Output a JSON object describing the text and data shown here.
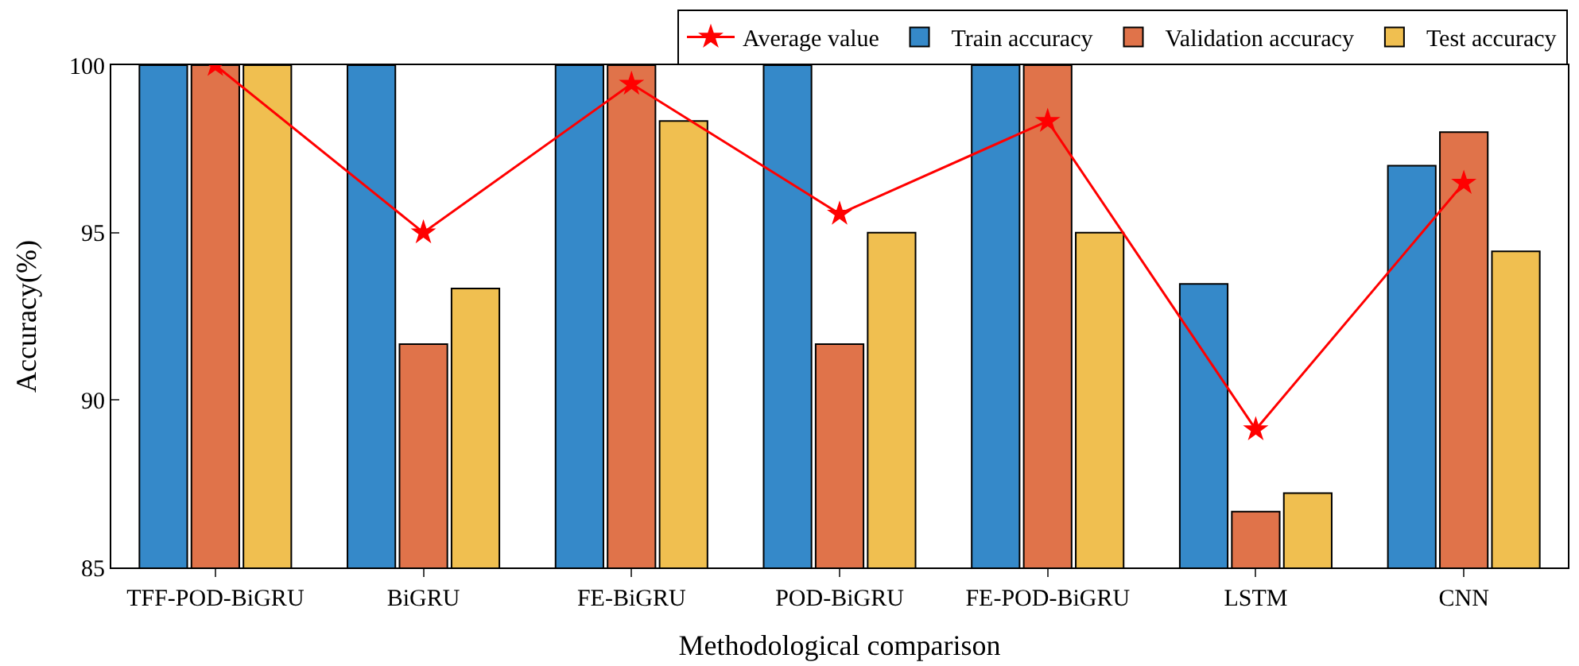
{
  "chart_data": {
    "type": "bar",
    "xlabel": "Methodological comparison",
    "ylabel": "Accuracy(%)",
    "categories": [
      "TFF-POD-BiGRU",
      "BiGRU",
      "FE-BiGRU",
      "POD-BiGRU",
      "FE-POD-BiGRU",
      "LSTM",
      "CNN"
    ],
    "series": [
      {
        "name": "Average value",
        "type": "line",
        "color": "#ff0000",
        "marker": "star",
        "line_style": "solid",
        "values": [
          100,
          95,
          99.44,
          95.56,
          98.33,
          89.12,
          96.48
        ]
      },
      {
        "name": "Train accuracy",
        "color": "#3589c9",
        "values": [
          100,
          100,
          100,
          100,
          100,
          93.47,
          97
        ]
      },
      {
        "name": "Validation accuracy",
        "color": "#e0734a",
        "values": [
          100,
          91.67,
          100,
          91.67,
          100,
          86.67,
          98
        ]
      },
      {
        "name": "Test accuracy",
        "color": "#f0bf50",
        "values": [
          100,
          93.33,
          98.33,
          95,
          95,
          87.22,
          94.44
        ]
      }
    ],
    "ylim": [
      85,
      100
    ],
    "yticks": [
      85,
      90,
      95,
      100
    ],
    "legend": "top right"
  }
}
